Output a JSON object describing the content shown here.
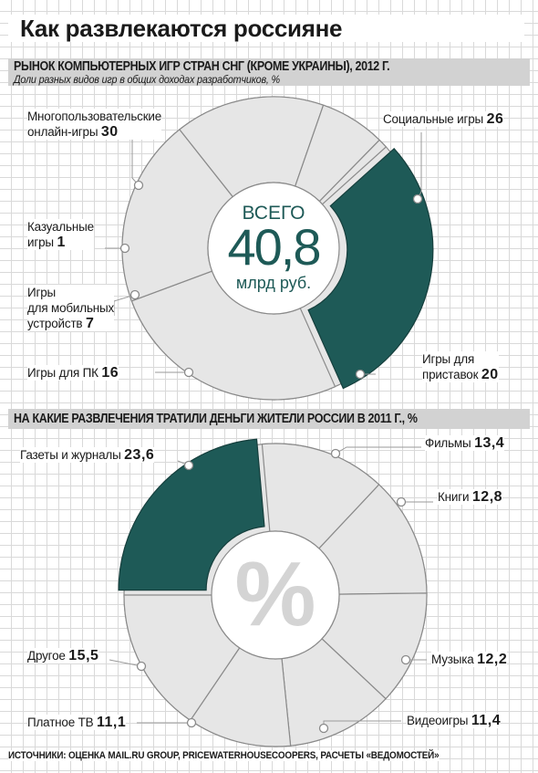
{
  "title": "Как развлекаются россияне",
  "colors": {
    "highlight": "#1e5a57",
    "segment": "#e6e6e6",
    "outline": "#8a8a8a"
  },
  "chart_data": [
    {
      "type": "pie",
      "title": "РЫНОК КОМПЬЮТЕРНЫХ ИГР СТРАН СНГ (КРОМЕ УКРАИНЫ), 2012 Г.",
      "subtitle": "Доли разных видов игр в общих доходах разработчиков, %",
      "center": {
        "top": "ВСЕГО",
        "value": "40,8",
        "bottom": "млрд руб."
      },
      "slices": [
        {
          "label_lines": [
            "Многопользовательские",
            "онлайн-игры"
          ],
          "value": 30,
          "value_text": "30",
          "highlight": true
        },
        {
          "label_lines": [
            "Социальные игры"
          ],
          "value": 26,
          "value_text": "26"
        },
        {
          "label_lines": [
            "Игры для",
            "приставок"
          ],
          "value": 20,
          "value_text": "20"
        },
        {
          "label_lines": [
            "Игры для ПК"
          ],
          "value": 16,
          "value_text": "16"
        },
        {
          "label_lines": [
            "Игры",
            "для мобильных",
            "устройств"
          ],
          "value": 7,
          "value_text": "7"
        },
        {
          "label_lines": [
            "Казуальные",
            "игры"
          ],
          "value": 1,
          "value_text": "1"
        }
      ]
    },
    {
      "type": "pie",
      "title": "НА КАКИЕ РАЗВЛЕЧЕНИЯ ТРАТИЛИ ДЕНЬГИ ЖИТЕЛИ РОССИИ В 2011 Г., %",
      "center": {
        "symbol": "%"
      },
      "slices": [
        {
          "label_lines": [
            "Газеты и журналы"
          ],
          "value": 23.6,
          "value_text": "23,6",
          "highlight": true
        },
        {
          "label_lines": [
            "Фильмы"
          ],
          "value": 13.4,
          "value_text": "13,4"
        },
        {
          "label_lines": [
            "Книги"
          ],
          "value": 12.8,
          "value_text": "12,8"
        },
        {
          "label_lines": [
            "Музыка"
          ],
          "value": 12.2,
          "value_text": "12,2"
        },
        {
          "label_lines": [
            "Видеоигры"
          ],
          "value": 11.4,
          "value_text": "11,4"
        },
        {
          "label_lines": [
            "Платное ТВ"
          ],
          "value": 11.1,
          "value_text": "11,1"
        },
        {
          "label_lines": [
            "Другое"
          ],
          "value": 15.5,
          "value_text": "15,5"
        }
      ]
    }
  ],
  "source": "ИСТОЧНИКИ: ОЦЕНКА MAIL.RU GROUP, PRICEWATERHOUSECOOPERS, РАСЧЕТЫ «ВЕДОМОСТЕЙ»"
}
